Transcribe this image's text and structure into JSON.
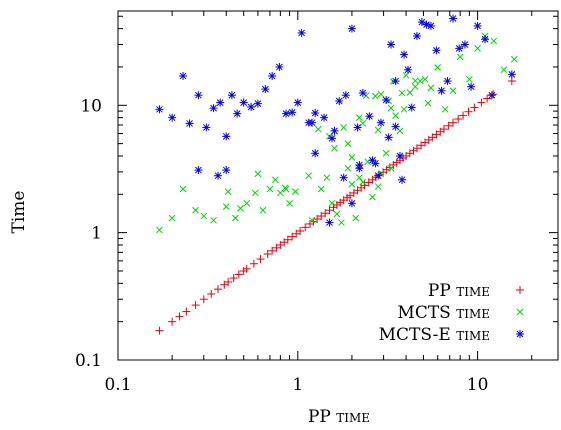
{
  "chart_data": {
    "type": "scatter",
    "title": "",
    "xlabel": "PP time",
    "ylabel": "Time",
    "x_scale": "log",
    "y_scale": "log",
    "xlim": [
      0.1,
      28
    ],
    "ylim": [
      0.1,
      55
    ],
    "x_ticks": [
      {
        "v": 0.1,
        "label": "0.1"
      },
      {
        "v": 1,
        "label": "1"
      },
      {
        "v": 10,
        "label": "10"
      }
    ],
    "y_ticks": [
      {
        "v": 0.1,
        "label": "0.1"
      },
      {
        "v": 1,
        "label": "1"
      },
      {
        "v": 10,
        "label": "10"
      }
    ],
    "grid": false,
    "legend_position": "bottom-right",
    "series": [
      {
        "name": "PP time",
        "marker": "plus",
        "color": "#e8000b",
        "x": [
          0.17,
          0.2,
          0.22,
          0.24,
          0.27,
          0.3,
          0.33,
          0.36,
          0.39,
          0.41,
          0.44,
          0.47,
          0.5,
          0.52,
          0.57,
          0.62,
          0.68,
          0.72,
          0.76,
          0.8,
          0.84,
          0.88,
          0.93,
          0.98,
          1.03,
          1.1,
          1.17,
          1.22,
          1.28,
          1.35,
          1.42,
          1.5,
          1.58,
          1.65,
          1.72,
          1.8,
          1.88,
          1.95,
          2.05,
          2.15,
          2.25,
          2.35,
          2.48,
          2.6,
          2.72,
          2.85,
          2.98,
          3.12,
          3.25,
          3.4,
          3.55,
          3.7,
          3.85,
          4.0,
          4.2,
          4.4,
          4.6,
          4.85,
          5.1,
          5.35,
          5.6,
          5.9,
          6.2,
          6.5,
          6.9,
          7.3,
          7.8,
          8.3,
          8.9,
          9.6,
          10.5,
          11.3,
          12.2,
          15.5
        ],
        "y": [
          0.17,
          0.2,
          0.22,
          0.24,
          0.27,
          0.3,
          0.33,
          0.36,
          0.39,
          0.41,
          0.44,
          0.47,
          0.5,
          0.52,
          0.57,
          0.62,
          0.68,
          0.72,
          0.76,
          0.8,
          0.84,
          0.88,
          0.93,
          0.98,
          1.03,
          1.1,
          1.17,
          1.22,
          1.28,
          1.35,
          1.42,
          1.5,
          1.58,
          1.65,
          1.72,
          1.8,
          1.88,
          1.95,
          2.05,
          2.15,
          2.25,
          2.35,
          2.48,
          2.6,
          2.72,
          2.85,
          2.98,
          3.12,
          3.25,
          3.4,
          3.55,
          3.7,
          3.85,
          4.0,
          4.2,
          4.4,
          4.6,
          4.85,
          5.1,
          5.35,
          5.6,
          5.9,
          6.2,
          6.5,
          6.9,
          7.3,
          7.8,
          8.3,
          8.9,
          9.6,
          10.5,
          11.3,
          12.2,
          15.5
        ]
      },
      {
        "name": "MCTS time",
        "marker": "cross",
        "color": "#00d400",
        "x": [
          0.17,
          0.2,
          0.23,
          0.27,
          0.3,
          0.34,
          0.4,
          0.41,
          0.45,
          0.48,
          0.52,
          0.58,
          0.64,
          0.7,
          0.75,
          0.8,
          0.85,
          0.9,
          0.97,
          1.15,
          1.2,
          1.35,
          1.45,
          1.55,
          1.65,
          1.75,
          1.9,
          2.0,
          2.1,
          2.2,
          2.3,
          2.45,
          2.6,
          2.8,
          2.9,
          3.1,
          3.3,
          3.5,
          3.7,
          3.9,
          4.2,
          4.5,
          4.8,
          5.1,
          5.5,
          6.0,
          6.6,
          7.3,
          8.0,
          9.0,
          10.0,
          11.0,
          12.3,
          14.0,
          16.0,
          1.3,
          1.6,
          2.0,
          2.4,
          2.9,
          3.4,
          4.0,
          1.8,
          2.2,
          2.7,
          3.2,
          3.8,
          4.5,
          5.3,
          1.5,
          1.9,
          2.3,
          2.8,
          3.3,
          0.6,
          0.86
        ],
        "y": [
          1.05,
          1.3,
          2.2,
          1.5,
          1.35,
          1.25,
          1.6,
          2.1,
          1.3,
          1.55,
          1.7,
          2.05,
          1.5,
          2.2,
          2.6,
          2.05,
          2.25,
          1.7,
          2.1,
          2.8,
          1.25,
          2.2,
          2.7,
          1.7,
          1.4,
          1.2,
          3.2,
          2.4,
          1.3,
          2.7,
          2.5,
          3.6,
          1.9,
          2.3,
          2.9,
          4.2,
          3.2,
          8.3,
          6.3,
          9.3,
          12.6,
          14.0,
          15.5,
          16.0,
          13.7,
          19.8,
          9.3,
          13.0,
          24.0,
          16.0,
          28.0,
          35.0,
          32.0,
          19.0,
          23.0,
          6.5,
          4.6,
          3.9,
          11.9,
          12.2,
          15.4,
          17.2,
          6.7,
          8.0,
          11.8,
          10.8,
          12.5,
          15.6,
          10.4,
          5.7,
          5.0,
          7.2,
          6.4,
          9.5,
          2.9,
          2.2
        ]
      },
      {
        "name": "MCTS-E time",
        "marker": "star",
        "color": "#0000e8",
        "x": [
          0.17,
          0.2,
          0.23,
          0.25,
          0.28,
          0.31,
          0.34,
          0.37,
          0.4,
          0.43,
          0.46,
          0.5,
          0.55,
          0.6,
          0.66,
          0.72,
          0.79,
          0.86,
          0.93,
          1.0,
          1.05,
          1.15,
          1.25,
          1.4,
          1.55,
          1.7,
          1.85,
          2.0,
          2.15,
          2.3,
          2.5,
          2.7,
          2.9,
          3.1,
          3.3,
          3.5,
          3.7,
          3.9,
          4.1,
          4.3,
          4.6,
          4.9,
          5.2,
          5.5,
          5.9,
          6.3,
          6.8,
          7.3,
          7.9,
          8.5,
          9.2,
          10.0,
          11.0,
          12.0,
          15.5,
          2.0,
          2.6,
          3.2,
          3.8,
          1.5,
          1.8,
          2.2,
          2.8,
          3.5,
          1.25,
          1.6,
          2.2,
          0.4,
          0.36,
          0.28,
          1.2
        ],
        "y": [
          9.3,
          8.0,
          17.0,
          7.2,
          12.0,
          6.7,
          9.5,
          10.5,
          5.7,
          12.0,
          8.6,
          10.5,
          9.7,
          10.3,
          13.4,
          17.0,
          20.0,
          8.6,
          8.8,
          10.5,
          37.0,
          7.3,
          4.2,
          8.0,
          5.5,
          10.8,
          12.0,
          40.0,
          6.7,
          12.5,
          8.2,
          3.5,
          7.3,
          11.0,
          30.0,
          15.5,
          4.0,
          25.0,
          19.0,
          9.6,
          35.0,
          45.0,
          43.0,
          42.0,
          27.0,
          13.0,
          15.5,
          48.0,
          28.0,
          30.0,
          14.0,
          42.0,
          33.0,
          12.0,
          17.5,
          1.7,
          3.7,
          5.6,
          2.6,
          1.2,
          2.7,
          3.4,
          2.8,
          6.8,
          8.7,
          6.3,
          3.2,
          3.1,
          2.8,
          3.1,
          7.3
        ]
      }
    ]
  }
}
